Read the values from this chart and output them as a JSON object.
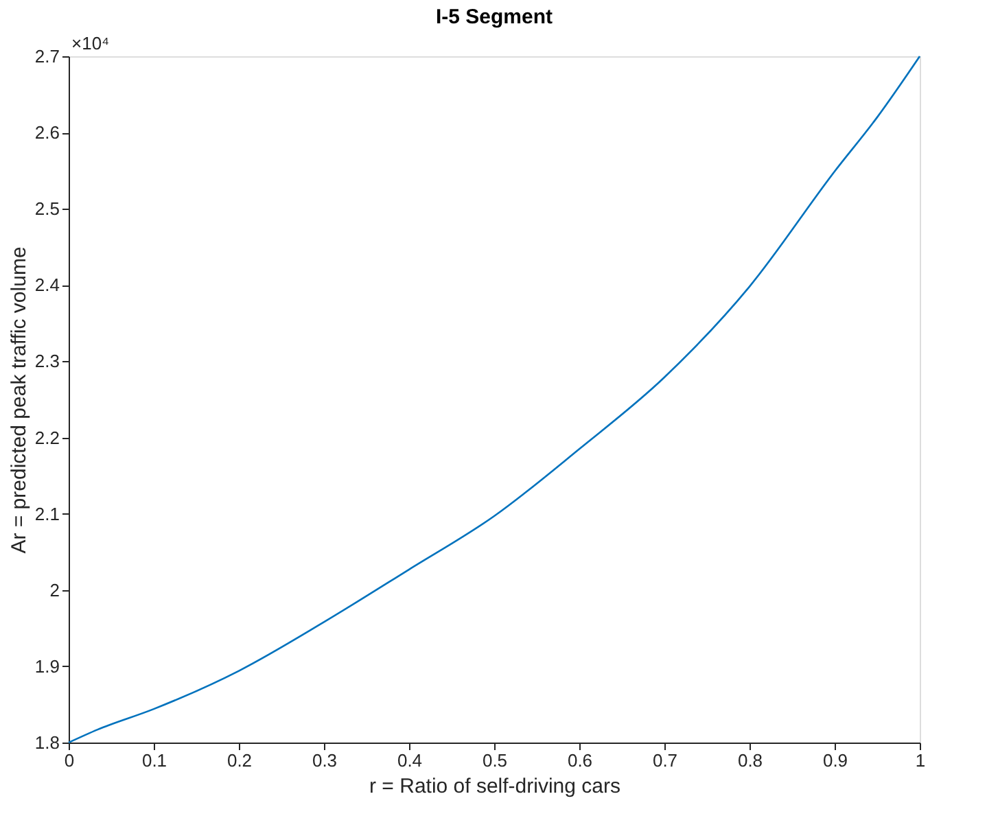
{
  "chart_data": {
    "type": "line",
    "title": "I-5 Segment",
    "xlabel": "r = Ratio of self-driving cars",
    "ylabel": "Ar = predicted peak traffic volume",
    "annotations": [
      "×10⁴"
    ],
    "x": [
      0,
      0.034,
      0.1,
      0.2,
      0.3,
      0.4,
      0.5,
      0.6,
      0.7,
      0.8,
      0.9,
      0.95,
      1
    ],
    "series": [
      {
        "color": "#0072bd",
        "values": [
          1.8,
          1.817,
          1.844,
          1.894,
          1.958,
          2.027,
          2.097,
          2.185,
          2.279,
          2.398,
          2.549,
          2.62,
          2.7
        ]
      }
    ],
    "xlim": [
      0,
      1
    ],
    "xticks": [
      0,
      0.1,
      0.2,
      0.3,
      0.4,
      0.5,
      0.6,
      0.7,
      0.8,
      0.9,
      1
    ],
    "ylim": [
      1.8,
      2.7
    ],
    "yticks": [
      1.8,
      1.9,
      2,
      2.1,
      2.2,
      2.3,
      2.4,
      2.5,
      2.6,
      2.7
    ],
    "grid": false,
    "marker": "none",
    "line_style": "solid"
  }
}
